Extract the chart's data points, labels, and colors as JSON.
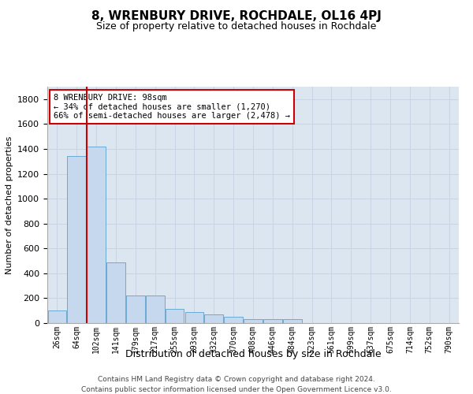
{
  "title1": "8, WRENBURY DRIVE, ROCHDALE, OL16 4PJ",
  "title2": "Size of property relative to detached houses in Rochdale",
  "xlabel": "Distribution of detached houses by size in Rochdale",
  "ylabel": "Number of detached properties",
  "categories": [
    "26sqm",
    "64sqm",
    "102sqm",
    "141sqm",
    "179sqm",
    "217sqm",
    "255sqm",
    "293sqm",
    "332sqm",
    "370sqm",
    "408sqm",
    "446sqm",
    "484sqm",
    "523sqm",
    "561sqm",
    "599sqm",
    "637sqm",
    "675sqm",
    "714sqm",
    "752sqm",
    "790sqm"
  ],
  "values": [
    100,
    1340,
    1420,
    490,
    220,
    220,
    115,
    90,
    70,
    50,
    30,
    30,
    30,
    0,
    0,
    0,
    0,
    0,
    0,
    0,
    0
  ],
  "bar_color": "#c5d8ee",
  "bar_edge_color": "#6aaad4",
  "vline_x": 1.5,
  "vline_color": "#cc0000",
  "annotation_text": "8 WRENBURY DRIVE: 98sqm\n← 34% of detached houses are smaller (1,270)\n66% of semi-detached houses are larger (2,478) →",
  "annotation_box_color": "#ffffff",
  "annotation_box_edge": "#cc0000",
  "ylim": [
    0,
    1900
  ],
  "yticks": [
    0,
    200,
    400,
    600,
    800,
    1000,
    1200,
    1400,
    1600,
    1800
  ],
  "grid_color": "#c8d4e4",
  "background_color": "#dce6f1",
  "footer1": "Contains HM Land Registry data © Crown copyright and database right 2024.",
  "footer2": "Contains public sector information licensed under the Open Government Licence v3.0."
}
